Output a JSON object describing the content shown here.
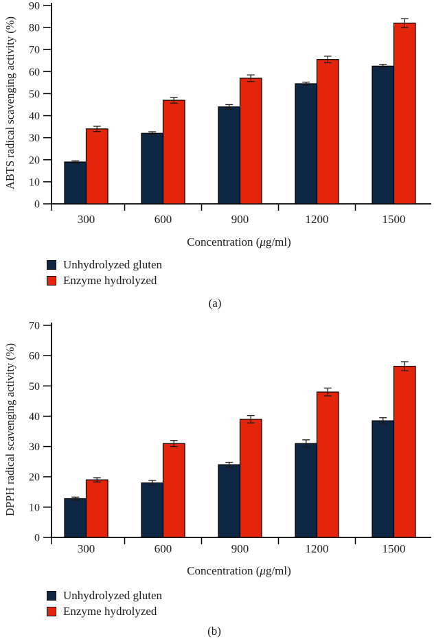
{
  "colors": {
    "navy": "#0d2745",
    "red": "#e2250b",
    "axis": "#000000",
    "text": "#1a1a1a",
    "error_bar": "#1a1a1a",
    "background": "#ffffff"
  },
  "legend": {
    "items": [
      {
        "label": "Unhydrolyzed gluten",
        "color": "#0d2745"
      },
      {
        "label": "Enzyme hydrolyzed",
        "color": "#e2250b"
      }
    ]
  },
  "panels": [
    {
      "label": "(a)"
    },
    {
      "label": "(b)"
    }
  ],
  "chart_data": [
    {
      "type": "bar",
      "panel": "a",
      "title": "",
      "categories": [
        "300",
        "600",
        "900",
        "1200",
        "1500"
      ],
      "xlabel": "Concentration (μg/ml)",
      "ylabel": "ABTS radical scavenging activity (%)",
      "ylim": [
        0,
        90
      ],
      "ytick_step": 10,
      "grid": false,
      "legend_position": "below-left",
      "error_bars": true,
      "series": [
        {
          "name": "Unhydrolyzed gluten",
          "color": "#0d2745",
          "values": [
            19,
            32,
            44,
            54.5,
            62.5
          ],
          "errors": [
            0.5,
            0.7,
            1.0,
            0.7,
            0.8
          ]
        },
        {
          "name": "Enzyme hydrolyzed",
          "color": "#e2250b",
          "values": [
            34,
            47,
            57,
            65.5,
            82
          ],
          "errors": [
            1.2,
            1.3,
            1.5,
            1.5,
            2.0
          ]
        }
      ]
    },
    {
      "type": "bar",
      "panel": "b",
      "title": "",
      "categories": [
        "300",
        "600",
        "900",
        "1200",
        "1500"
      ],
      "xlabel": "Concentration (μg/ml)",
      "ylabel": "DPPH radical scavenging activity (%)",
      "ylim": [
        0,
        70
      ],
      "ytick_step": 10,
      "grid": false,
      "legend_position": "below-left",
      "error_bars": true,
      "series": [
        {
          "name": "Unhydrolyzed gluten",
          "color": "#0d2745",
          "values": [
            12.8,
            18,
            24,
            31,
            38.5
          ],
          "errors": [
            0.5,
            0.8,
            0.8,
            1.2,
            1.0
          ]
        },
        {
          "name": "Enzyme hydrolyzed",
          "color": "#e2250b",
          "values": [
            19,
            31,
            39,
            48,
            56.5
          ],
          "errors": [
            0.7,
            1.0,
            1.2,
            1.3,
            1.5
          ]
        }
      ]
    }
  ]
}
